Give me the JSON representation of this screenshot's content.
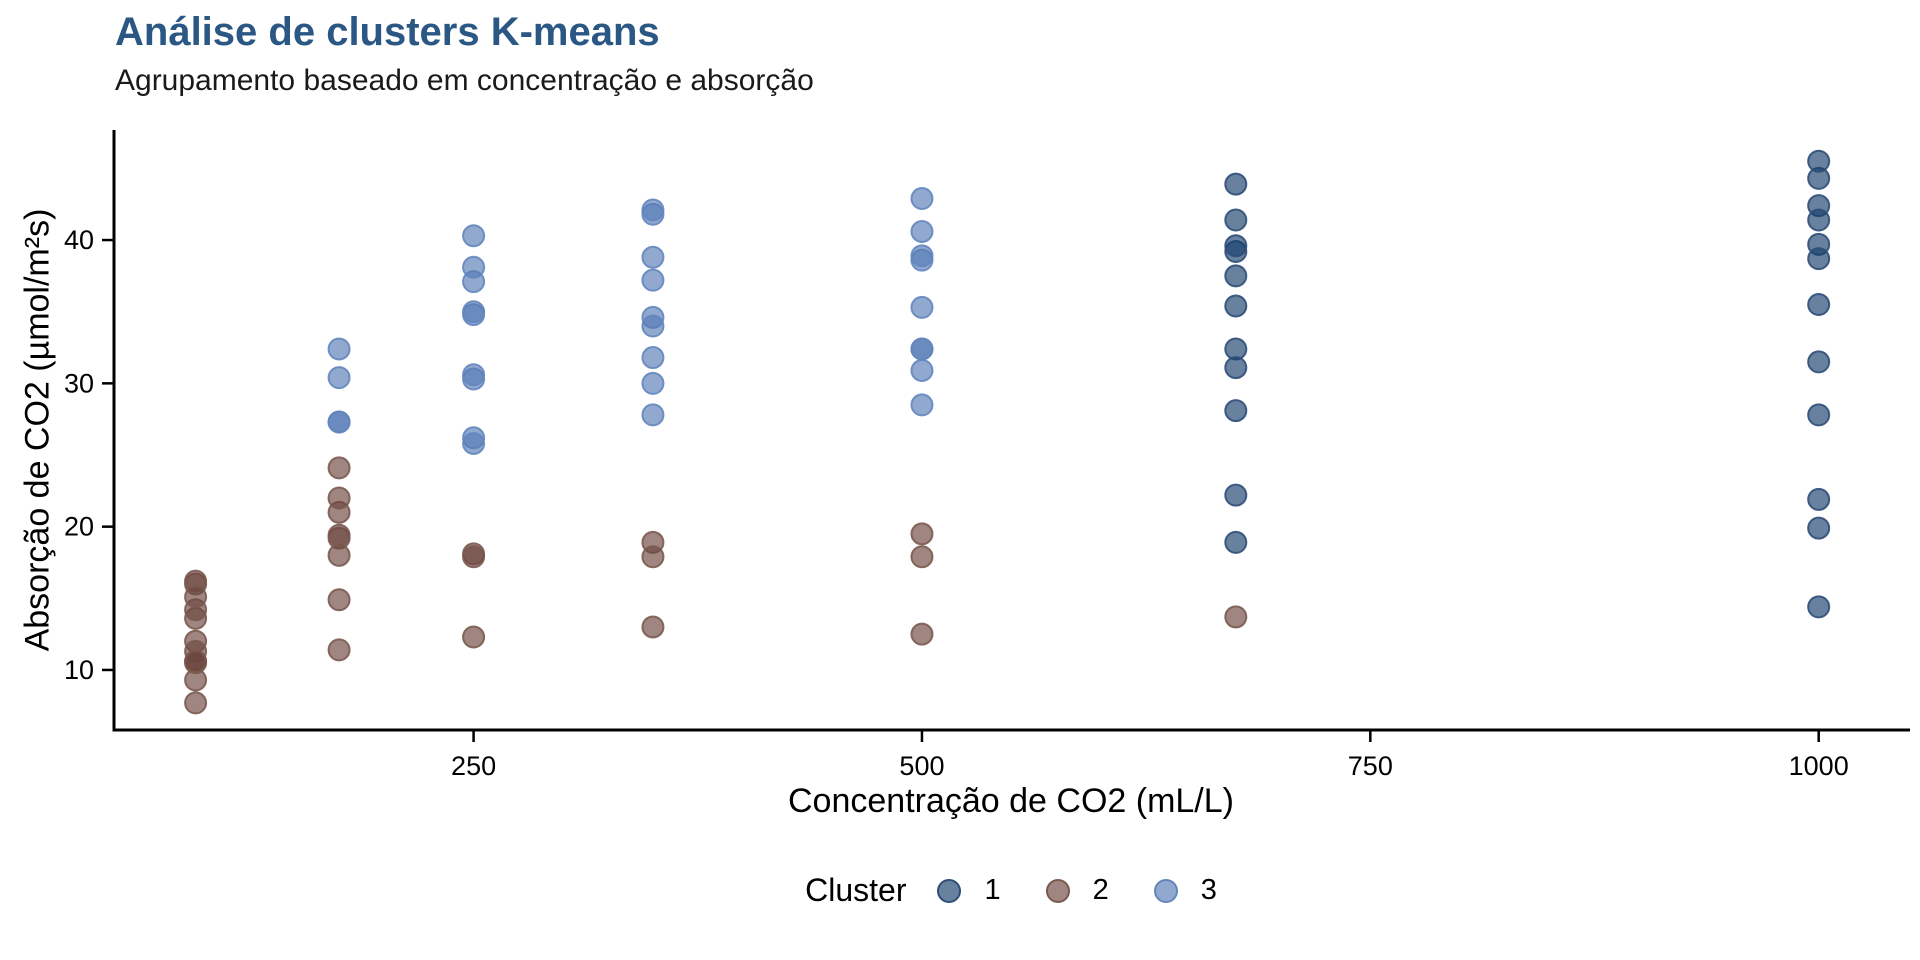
{
  "title": "Análise de clusters K-means",
  "subtitle": "Agrupamento baseado em concentração e absorção",
  "colors": {
    "title_text": "#2A5783",
    "axis": "#000000",
    "cluster1_fill": "#153E6B",
    "cluster1_stroke": "#2F4E78",
    "cluster2_fill": "#6B453D",
    "cluster2_stroke": "#7A5A50",
    "cluster3_fill": "#567BB5",
    "cluster3_stroke": "#6386BE"
  },
  "chart_data": {
    "type": "scatter",
    "title": "Análise de clusters K-means",
    "subtitle": "Agrupamento baseado em concentração e absorção",
    "xlabel": "Concentração de CO2 (mL/L)",
    "ylabel": "Absorção de CO2 (µmol/m²s)",
    "legend_title": "Cluster",
    "legend_position": "bottom",
    "grid": false,
    "x_ticks": [
      250,
      500,
      750,
      1000
    ],
    "y_ticks": [
      10,
      20,
      30,
      40
    ],
    "xlim": [
      49.5,
      1049.8
    ],
    "ylim": [
      5.81,
      47.54
    ],
    "point_alpha": 0.65,
    "point_radius": 10.5,
    "series": [
      {
        "name": "1",
        "fill": "#153E6B",
        "stroke": "#2F4E78",
        "points": [
          [
            675,
            39.2
          ],
          [
            675,
            41.4
          ],
          [
            675,
            43.9
          ],
          [
            675,
            35.4
          ],
          [
            675,
            37.5
          ],
          [
            675,
            39.6
          ],
          [
            675,
            32.4
          ],
          [
            675,
            31.1
          ],
          [
            675,
            28.1
          ],
          [
            675,
            22.2
          ],
          [
            675,
            18.9
          ],
          [
            1000,
            39.7
          ],
          [
            1000,
            44.3
          ],
          [
            1000,
            45.5
          ],
          [
            1000,
            38.7
          ],
          [
            1000,
            42.4
          ],
          [
            1000,
            41.4
          ],
          [
            1000,
            35.5
          ],
          [
            1000,
            31.5
          ],
          [
            1000,
            27.8
          ],
          [
            1000,
            21.9
          ],
          [
            1000,
            14.4
          ],
          [
            1000,
            19.9
          ]
        ]
      },
      {
        "name": "2",
        "fill": "#6B453D",
        "stroke": "#7A5A50",
        "points": [
          [
            95,
            16.0
          ],
          [
            95,
            13.6
          ],
          [
            95,
            16.2
          ],
          [
            95,
            14.2
          ],
          [
            95,
            9.3
          ],
          [
            95,
            15.1
          ],
          [
            95,
            10.6
          ],
          [
            95,
            12.0
          ],
          [
            95,
            11.3
          ],
          [
            95,
            10.5
          ],
          [
            95,
            7.7
          ],
          [
            95,
            10.6
          ],
          [
            175,
            24.1
          ],
          [
            175,
            21.0
          ],
          [
            175,
            19.2
          ],
          [
            175,
            22.0
          ],
          [
            175,
            19.4
          ],
          [
            175,
            14.9
          ],
          [
            175,
            11.4
          ],
          [
            175,
            18.0
          ],
          [
            250,
            18.1
          ],
          [
            250,
            12.3
          ],
          [
            250,
            17.9
          ],
          [
            350,
            18.9
          ],
          [
            350,
            13.0
          ],
          [
            350,
            17.9
          ],
          [
            500,
            19.5
          ],
          [
            500,
            12.5
          ],
          [
            500,
            17.9
          ],
          [
            675,
            13.7
          ]
        ]
      },
      {
        "name": "3",
        "fill": "#567BB5",
        "stroke": "#6386BE",
        "points": [
          [
            175,
            30.4
          ],
          [
            175,
            27.3
          ],
          [
            175,
            32.4
          ],
          [
            175,
            27.3
          ],
          [
            250,
            34.8
          ],
          [
            250,
            37.1
          ],
          [
            250,
            40.3
          ],
          [
            250,
            30.3
          ],
          [
            250,
            35.0
          ],
          [
            250,
            38.1
          ],
          [
            250,
            26.2
          ],
          [
            250,
            30.6
          ],
          [
            250,
            25.8
          ],
          [
            350,
            37.2
          ],
          [
            350,
            41.8
          ],
          [
            350,
            42.1
          ],
          [
            350,
            34.6
          ],
          [
            350,
            38.8
          ],
          [
            350,
            34.0
          ],
          [
            350,
            30.0
          ],
          [
            350,
            31.8
          ],
          [
            350,
            27.8
          ],
          [
            500,
            35.3
          ],
          [
            500,
            40.6
          ],
          [
            500,
            42.9
          ],
          [
            500,
            32.4
          ],
          [
            500,
            38.6
          ],
          [
            500,
            38.9
          ],
          [
            500,
            30.9
          ],
          [
            500,
            32.4
          ],
          [
            500,
            28.5
          ]
        ]
      }
    ]
  }
}
